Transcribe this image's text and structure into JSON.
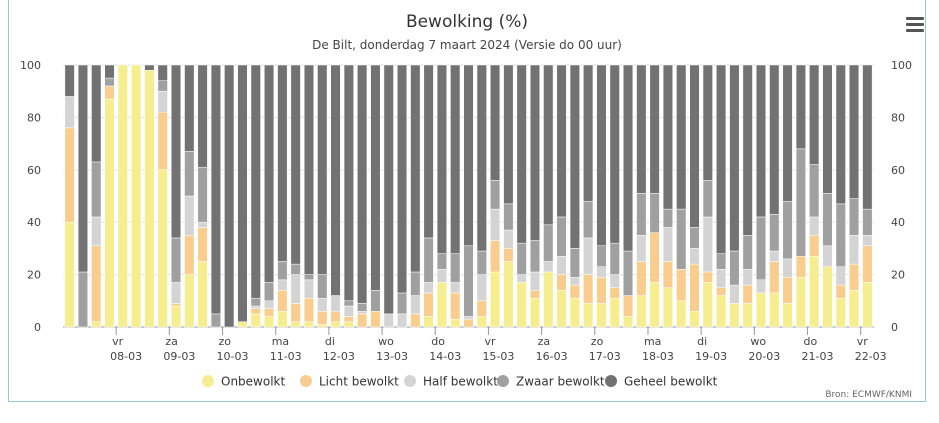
{
  "menu_icon": "hamburger-menu-icon",
  "chart_data": {
    "type": "bar",
    "stacked": true,
    "title": "Bewolking (%)",
    "subtitle": "De Bilt, donderdag 7 maart 2024 (Versie do 00 uur)",
    "credits": "Bron: ECMWF/KNMI",
    "ylim": [
      0,
      100
    ],
    "yticks": [
      0,
      20,
      40,
      60,
      80,
      100
    ],
    "y_axis_both_sides": true,
    "grid": true,
    "legend_position": "bottom-center",
    "x_ticks": [
      {
        "day": "vr",
        "date": "08-03",
        "index": 4
      },
      {
        "day": "za",
        "date": "09-03",
        "index": 8
      },
      {
        "day": "zo",
        "date": "10-03",
        "index": 12
      },
      {
        "day": "ma",
        "date": "11-03",
        "index": 16
      },
      {
        "day": "di",
        "date": "12-03",
        "index": 20
      },
      {
        "day": "wo",
        "date": "13-03",
        "index": 24
      },
      {
        "day": "do",
        "date": "14-03",
        "index": 28
      },
      {
        "day": "vr",
        "date": "15-03",
        "index": 32
      },
      {
        "day": "za",
        "date": "16-03",
        "index": 36
      },
      {
        "day": "zo",
        "date": "17-03",
        "index": 40
      },
      {
        "day": "ma",
        "date": "18-03",
        "index": 44
      },
      {
        "day": "di",
        "date": "19-03",
        "index": 48
      },
      {
        "day": "wo",
        "date": "20-03",
        "index": 52
      },
      {
        "day": "do",
        "date": "21-03",
        "index": 56
      },
      {
        "day": "vr",
        "date": "22-03",
        "index": 60
      }
    ],
    "series": [
      {
        "name": "Onbewolkt",
        "color": "#f6ee8e",
        "values": [
          40,
          0,
          2,
          87,
          100,
          100,
          98,
          60,
          8,
          20,
          25,
          0,
          0,
          2,
          5,
          4,
          6,
          2,
          2,
          1,
          2,
          2,
          0,
          0,
          0,
          0,
          0,
          4,
          17,
          3,
          0,
          4,
          21,
          25,
          17,
          11,
          21,
          14,
          11,
          9,
          9,
          11,
          4,
          12,
          17,
          15,
          10,
          6,
          17,
          12,
          9,
          9,
          13,
          13,
          9,
          19,
          27,
          23,
          11,
          14,
          17
        ]
      },
      {
        "name": "Licht bewolkt",
        "color": "#f8cd8e",
        "values": [
          36,
          0,
          29,
          5,
          0,
          0,
          0,
          22,
          1,
          15,
          13,
          0,
          0,
          0,
          2,
          3,
          8,
          7,
          9,
          5,
          4,
          2,
          5,
          6,
          0,
          0,
          5,
          9,
          0,
          10,
          3,
          6,
          12,
          5,
          0,
          3,
          0,
          6,
          5,
          11,
          10,
          4,
          8,
          13,
          19,
          10,
          12,
          18,
          4,
          3,
          0,
          7,
          0,
          12,
          10,
          8,
          8,
          0,
          5,
          10,
          14
        ]
      },
      {
        "name": "Half bewolkt",
        "color": "#d4d4d4",
        "values": [
          12,
          0,
          11,
          0,
          0,
          0,
          0,
          8,
          8,
          15,
          2,
          0,
          0,
          0,
          1,
          3,
          4,
          11,
          7,
          5,
          6,
          4,
          1,
          0,
          5,
          5,
          7,
          4,
          5,
          4,
          1,
          10,
          12,
          7,
          3,
          7,
          4,
          7,
          3,
          14,
          4,
          5,
          0,
          10,
          0,
          13,
          0,
          6,
          21,
          7,
          7,
          6,
          5,
          4,
          7,
          0,
          7,
          8,
          7,
          11,
          4
        ]
      },
      {
        "name": "Zwaar bewolkt",
        "color": "#a0a0a0",
        "values": [
          0,
          21,
          21,
          3,
          0,
          0,
          0,
          4,
          17,
          17,
          21,
          5,
          0,
          0,
          3,
          7,
          7,
          4,
          2,
          9,
          0,
          2,
          3,
          8,
          0,
          8,
          9,
          17,
          6,
          11,
          27,
          9,
          11,
          10,
          12,
          12,
          14,
          15,
          11,
          14,
          8,
          12,
          17,
          16,
          15,
          7,
          23,
          8,
          14,
          6,
          13,
          13,
          24,
          14,
          22,
          41,
          20,
          20,
          24,
          14,
          10
        ]
      },
      {
        "name": "Geheel bewolkt",
        "color": "#727272",
        "values": [
          12,
          79,
          37,
          5,
          0,
          0,
          2,
          6,
          66,
          33,
          39,
          95,
          100,
          98,
          89,
          83,
          75,
          76,
          80,
          80,
          88,
          90,
          91,
          86,
          95,
          87,
          79,
          66,
          72,
          72,
          69,
          71,
          44,
          53,
          68,
          67,
          61,
          58,
          70,
          52,
          69,
          68,
          71,
          49,
          49,
          55,
          55,
          62,
          44,
          72,
          71,
          65,
          58,
          57,
          52,
          32,
          38,
          49,
          53,
          51,
          55
        ]
      }
    ]
  }
}
